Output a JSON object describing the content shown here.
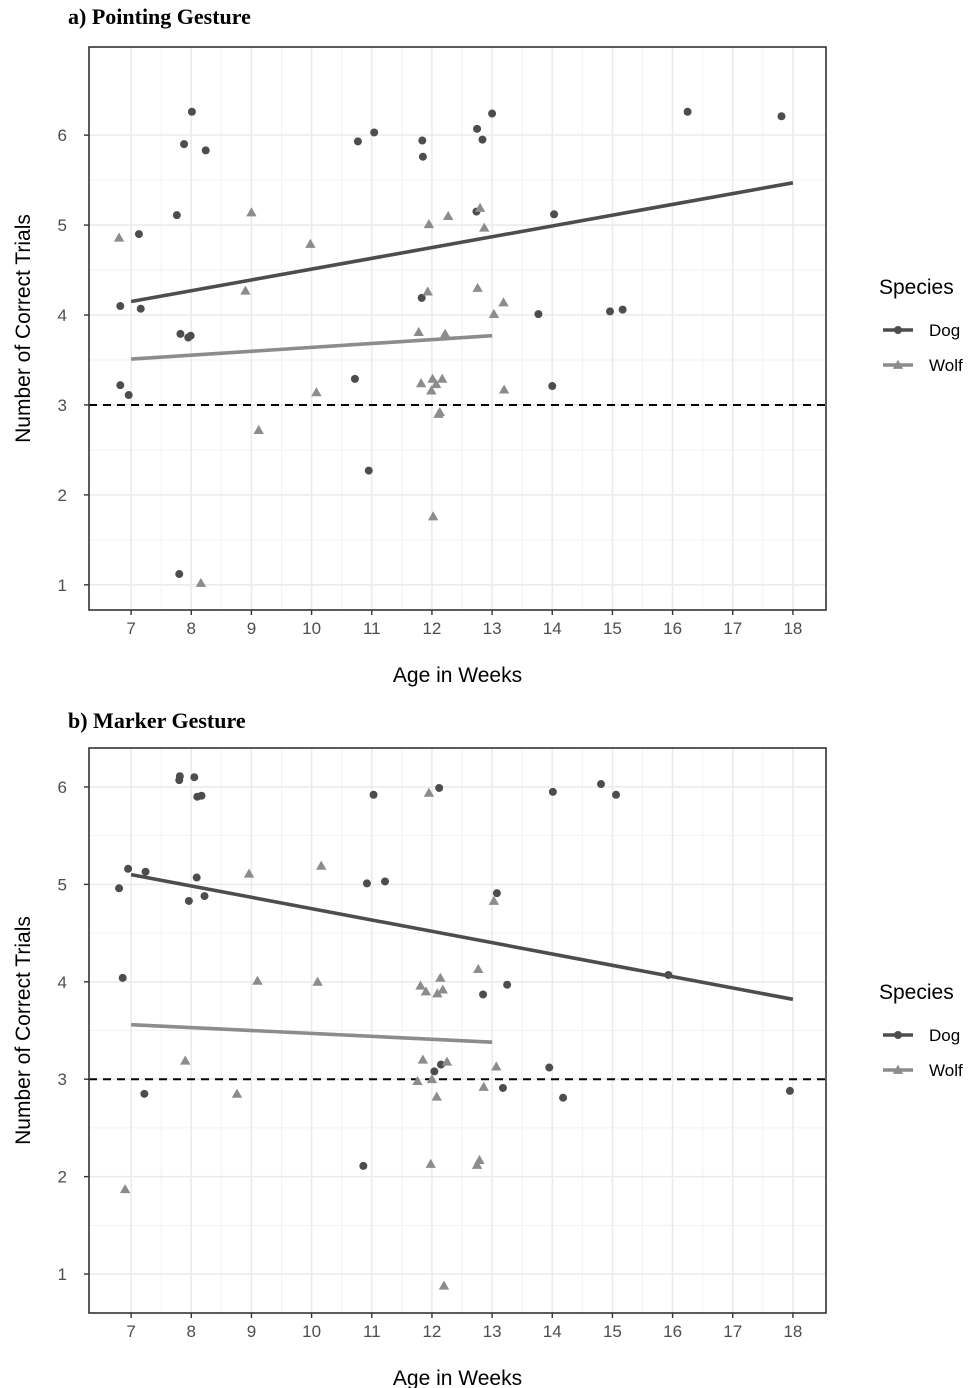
{
  "panels": [
    {
      "title": "a)   Pointing Gesture",
      "legend": {
        "title": "Species",
        "items": [
          "Dog",
          "Wolf"
        ]
      },
      "chart_data": {
        "type": "scatter",
        "xlabel": "Age in Weeks",
        "ylabel": "Number of Correct Trials",
        "xlim": [
          6.3,
          18.55
        ],
        "ylim": [
          0.72,
          6.98
        ],
        "xticks": [
          7,
          8,
          9,
          10,
          11,
          12,
          13,
          14,
          15,
          16,
          17,
          18
        ],
        "yticks": [
          1,
          2,
          3,
          4,
          5,
          6
        ],
        "reference_line": {
          "y": 3,
          "style": "dashed"
        },
        "grid": true,
        "legend_position": "right",
        "series": [
          {
            "name": "Dog",
            "marker": "circle",
            "color": "#4d4d4d",
            "points": [
              [
                6.82,
                4.1
              ],
              [
                6.82,
                3.22
              ],
              [
                6.96,
                3.11
              ],
              [
                7.13,
                4.9
              ],
              [
                7.16,
                4.07
              ],
              [
                7.76,
                5.11
              ],
              [
                7.8,
                1.12
              ],
              [
                7.82,
                3.79
              ],
              [
                7.88,
                5.9
              ],
              [
                7.95,
                3.75
              ],
              [
                7.99,
                3.77
              ],
              [
                8.01,
                6.26
              ],
              [
                8.24,
                5.83
              ],
              [
                10.72,
                3.29
              ],
              [
                10.77,
                5.93
              ],
              [
                10.95,
                2.27
              ],
              [
                11.04,
                6.03
              ],
              [
                11.83,
                4.19
              ],
              [
                11.84,
                5.94
              ],
              [
                11.85,
                5.76
              ],
              [
                12.74,
                5.15
              ],
              [
                12.75,
                6.07
              ],
              [
                12.84,
                5.95
              ],
              [
                13.0,
                6.24
              ],
              [
                13.77,
                4.01
              ],
              [
                14.0,
                3.21
              ],
              [
                14.03,
                5.12
              ],
              [
                14.96,
                4.04
              ],
              [
                15.17,
                4.06
              ],
              [
                16.25,
                6.26
              ],
              [
                17.81,
                6.21
              ]
            ],
            "trend": {
              "x": [
                7,
                18
              ],
              "y": [
                4.15,
                5.47
              ]
            }
          },
          {
            "name": "Wolf",
            "marker": "triangle",
            "color": "#8c8c8c",
            "points": [
              [
                6.8,
                4.86
              ],
              [
                8.16,
                1.02
              ],
              [
                8.9,
                4.27
              ],
              [
                9.0,
                5.14
              ],
              [
                9.12,
                2.72
              ],
              [
                9.98,
                4.79
              ],
              [
                10.08,
                3.14
              ],
              [
                11.78,
                3.81
              ],
              [
                11.82,
                3.24
              ],
              [
                11.93,
                4.26
              ],
              [
                11.95,
                5.01
              ],
              [
                11.99,
                3.16
              ],
              [
                12.01,
                3.29
              ],
              [
                12.02,
                1.76
              ],
              [
                12.07,
                3.23
              ],
              [
                12.11,
                2.9
              ],
              [
                12.13,
                2.92
              ],
              [
                12.17,
                3.29
              ],
              [
                12.22,
                3.79
              ],
              [
                12.27,
                5.1
              ],
              [
                12.76,
                4.3
              ],
              [
                12.8,
                5.19
              ],
              [
                12.87,
                4.97
              ],
              [
                13.03,
                4.01
              ],
              [
                13.19,
                4.14
              ],
              [
                13.2,
                3.17
              ]
            ],
            "trend": {
              "x": [
                7,
                13
              ],
              "y": [
                3.51,
                3.77
              ]
            }
          }
        ]
      }
    },
    {
      "title": "b)   Marker Gesture",
      "legend": {
        "title": "Species",
        "items": [
          "Dog",
          "Wolf"
        ]
      },
      "chart_data": {
        "type": "scatter",
        "xlabel": "Age in Weeks",
        "ylabel": "Number of Correct Trials",
        "xlim": [
          6.3,
          18.55
        ],
        "ylim": [
          0.6,
          6.4
        ],
        "xticks": [
          7,
          8,
          9,
          10,
          11,
          12,
          13,
          14,
          15,
          16,
          17,
          18
        ],
        "yticks": [
          1,
          2,
          3,
          4,
          5,
          6
        ],
        "reference_line": {
          "y": 3,
          "style": "dashed"
        },
        "grid": true,
        "legend_position": "right",
        "series": [
          {
            "name": "Dog",
            "marker": "circle",
            "color": "#4d4d4d",
            "points": [
              [
                6.8,
                4.96
              ],
              [
                6.86,
                4.04
              ],
              [
                6.95,
                5.16
              ],
              [
                7.22,
                2.85
              ],
              [
                7.24,
                5.13
              ],
              [
                7.8,
                6.07
              ],
              [
                7.81,
                6.11
              ],
              [
                7.96,
                4.83
              ],
              [
                8.05,
                6.1
              ],
              [
                8.09,
                5.07
              ],
              [
                8.1,
                5.9
              ],
              [
                8.17,
                5.91
              ],
              [
                8.22,
                4.88
              ],
              [
                10.86,
                2.11
              ],
              [
                10.92,
                5.01
              ],
              [
                11.03,
                5.92
              ],
              [
                11.22,
                5.03
              ],
              [
                12.04,
                3.08
              ],
              [
                12.12,
                5.99
              ],
              [
                12.15,
                3.15
              ],
              [
                12.85,
                3.87
              ],
              [
                13.08,
                4.91
              ],
              [
                13.18,
                2.91
              ],
              [
                13.25,
                3.97
              ],
              [
                13.95,
                3.12
              ],
              [
                14.01,
                5.95
              ],
              [
                14.18,
                2.81
              ],
              [
                14.81,
                6.03
              ],
              [
                15.06,
                5.92
              ],
              [
                15.93,
                4.07
              ],
              [
                17.95,
                2.88
              ]
            ],
            "trend": {
              "x": [
                7,
                18
              ],
              "y": [
                5.1,
                3.82
              ]
            }
          },
          {
            "name": "Wolf",
            "marker": "triangle",
            "color": "#8c8c8c",
            "points": [
              [
                6.9,
                1.87
              ],
              [
                7.9,
                3.19
              ],
              [
                8.76,
                2.85
              ],
              [
                8.96,
                5.11
              ],
              [
                9.1,
                4.01
              ],
              [
                10.1,
                4.0
              ],
              [
                10.16,
                5.19
              ],
              [
                11.76,
                2.98
              ],
              [
                11.81,
                3.96
              ],
              [
                11.85,
                3.2
              ],
              [
                11.9,
                3.9
              ],
              [
                11.95,
                5.94
              ],
              [
                11.98,
                2.13
              ],
              [
                12.0,
                3.0
              ],
              [
                12.08,
                2.82
              ],
              [
                12.09,
                3.88
              ],
              [
                12.14,
                4.04
              ],
              [
                12.18,
                3.92
              ],
              [
                12.2,
                0.88
              ],
              [
                12.25,
                3.18
              ],
              [
                12.75,
                2.12
              ],
              [
                12.77,
                4.13
              ],
              [
                12.79,
                2.17
              ],
              [
                12.86,
                2.92
              ],
              [
                13.03,
                4.83
              ],
              [
                13.07,
                3.13
              ]
            ],
            "trend": {
              "x": [
                7,
                13
              ],
              "y": [
                3.56,
                3.38
              ]
            }
          }
        ]
      }
    }
  ]
}
